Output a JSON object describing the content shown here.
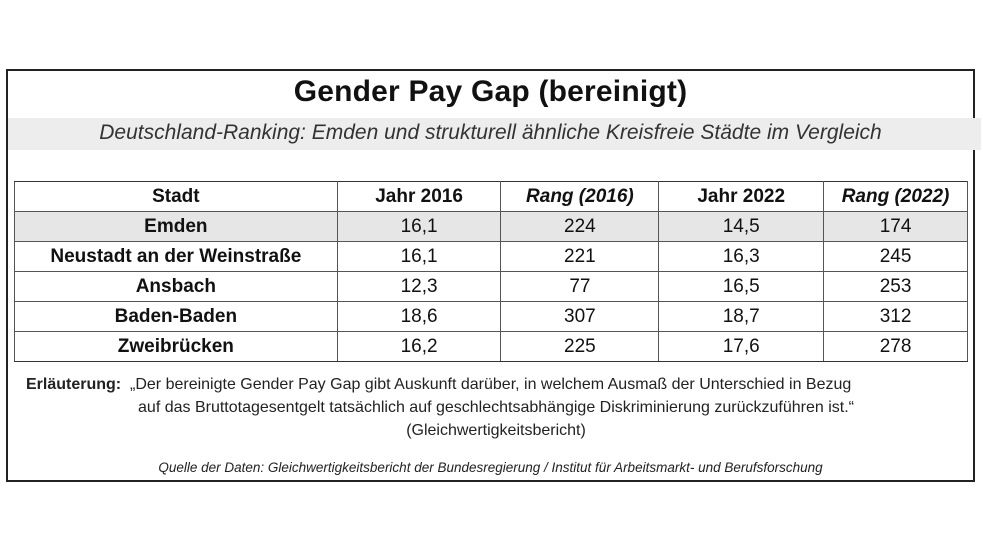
{
  "title": "Gender Pay Gap (bereinigt)",
  "subtitle": "Deutschland-Ranking: Emden und strukturell ähnliche Kreisfreie Städte im Vergleich",
  "table": {
    "headers": [
      "Stadt",
      "Jahr 2016",
      "Rang (2016)",
      "Jahr 2022",
      "Rang (2022)"
    ],
    "rows": [
      [
        "Emden",
        "16,1",
        "224",
        "14,5",
        "174"
      ],
      [
        "Neustadt an der Weinstraße",
        "16,1",
        "221",
        "16,3",
        "245"
      ],
      [
        "Ansbach",
        "12,3",
        "77",
        "16,5",
        "253"
      ],
      [
        "Baden-Baden",
        "18,6",
        "307",
        "18,7",
        "312"
      ],
      [
        "Zweibrücken",
        "16,2",
        "225",
        "17,6",
        "278"
      ]
    ]
  },
  "note": {
    "label": "Erläuterung:",
    "line1": "„Der bereinigte Gender Pay Gap gibt Auskunft darüber, in welchem Ausmaß der Unterschied in Bezug",
    "line2": "auf das Bruttotagesentgelt tatsächlich auf geschlechtsabhängige Diskriminierung zurückzuführen ist.“",
    "line3": "(Gleichwertigkeitsbericht)"
  },
  "source": "Quelle der Daten: Gleichwertigkeitsbericht der Bundesregierung / Institut für Arbeitsmarkt- und Berufsforschung"
}
